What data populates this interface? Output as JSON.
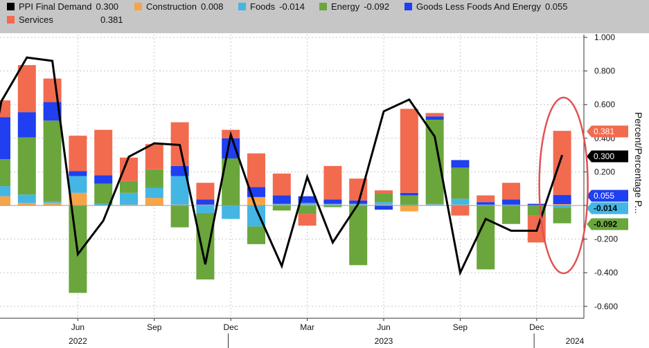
{
  "colors": {
    "ppi": "#000000",
    "construction": "#f7a448",
    "foods": "#44b6e4",
    "energy": "#6aa63c",
    "goods": "#1f3ff0",
    "services": "#f26b4f",
    "ellipse": "#e05252",
    "legend_bg": "#c6c6c6"
  },
  "chart_data": {
    "type": "bar",
    "stacked": true,
    "ylim": [
      -0.65,
      1.0
    ],
    "yticks": [
      -0.6,
      -0.4,
      -0.2,
      0.0,
      0.2,
      0.4,
      0.6,
      0.8,
      1.0
    ],
    "ytick_labels": [
      "-0.600",
      "-0.400",
      "-0.200",
      "",
      "0.200",
      "0.400",
      "0.600",
      "0.800",
      "1.000"
    ],
    "ylabel": "Percent/Percentage P...",
    "months": [
      "Mar 2022",
      "Apr 2022",
      "May 2022",
      "Jun 2022",
      "Jul 2022",
      "Aug 2022",
      "Sep 2022",
      "Oct 2022",
      "Nov 2022",
      "Dec 2022",
      "Jan 2023",
      "Feb 2023",
      "Mar 2023",
      "Apr 2023",
      "May 2023",
      "Jun 2023",
      "Jul 2023",
      "Aug 2023",
      "Sep 2023",
      "Oct 2023",
      "Nov 2023",
      "Dec 2023",
      "Jan 2024"
    ],
    "x_ticks": [
      {
        "index": 3,
        "label": "Jun"
      },
      {
        "index": 6,
        "label": "Sep"
      },
      {
        "index": 9,
        "label": "Dec"
      },
      {
        "index": 12,
        "label": "Mar"
      },
      {
        "index": 15,
        "label": "Jun"
      },
      {
        "index": 18,
        "label": "Sep"
      },
      {
        "index": 21,
        "label": "Dec"
      }
    ],
    "years": [
      {
        "label": "2022",
        "center_index": 3.0
      },
      {
        "label": "2023",
        "center_index": 15.0
      },
      {
        "label": "2024",
        "center_index": 22.5
      }
    ],
    "year_dividers": [
      8.9,
      20.9
    ],
    "series": [
      {
        "key": "construction",
        "name": "Construction",
        "values": [
          0.055,
          0.015,
          0.015,
          0.075,
          0.0,
          0.005,
          0.045,
          0.005,
          0.005,
          0.0,
          0.05,
          0.005,
          0.005,
          0.005,
          0.005,
          0.005,
          -0.035,
          0.005,
          0.005,
          0.0,
          0.0,
          0.0,
          0.008
        ]
      },
      {
        "key": "foods",
        "name": "Foods",
        "values": [
          0.06,
          0.05,
          0.01,
          0.1,
          0.01,
          0.07,
          0.06,
          0.17,
          -0.045,
          -0.08,
          -0.125,
          0.005,
          0.01,
          0.005,
          0.005,
          0.015,
          0.005,
          0.005,
          0.035,
          0.005,
          0.005,
          0.0,
          -0.014
        ]
      },
      {
        "key": "energy",
        "name": "Energy",
        "values": [
          0.16,
          0.34,
          0.48,
          -0.52,
          0.12,
          0.07,
          0.11,
          -0.13,
          -0.395,
          0.28,
          -0.105,
          -0.03,
          -0.05,
          -0.01,
          -0.355,
          0.05,
          0.055,
          0.5,
          0.185,
          -0.38,
          -0.11,
          -0.06,
          -0.092
        ]
      },
      {
        "key": "goods",
        "name": "Goods Less Foods And Energy",
        "values": [
          0.25,
          0.15,
          0.11,
          0.03,
          0.05,
          0.0,
          0.0,
          0.06,
          0.03,
          0.12,
          0.06,
          0.05,
          0.04,
          0.025,
          0.02,
          -0.025,
          0.015,
          0.02,
          0.045,
          0.015,
          0.03,
          0.01,
          0.055
        ]
      },
      {
        "key": "services",
        "name": "Services",
        "values": [
          0.1,
          0.28,
          0.14,
          0.21,
          0.27,
          0.14,
          0.15,
          0.26,
          0.1,
          0.05,
          0.2,
          0.13,
          -0.07,
          0.2,
          0.13,
          0.02,
          0.5,
          0.02,
          -0.06,
          0.04,
          0.1,
          -0.16,
          0.381
        ]
      }
    ],
    "line": {
      "key": "ppi",
      "name": "PPI Final Demand",
      "values": [
        0.62,
        0.88,
        0.86,
        -0.29,
        -0.09,
        0.29,
        0.37,
        0.36,
        -0.35,
        0.42,
        -0.02,
        -0.36,
        0.17,
        -0.22,
        0.01,
        0.56,
        0.63,
        0.41,
        -0.4,
        -0.08,
        -0.15,
        -0.15,
        0.3
      ]
    },
    "legend": [
      {
        "key": "ppi",
        "label": "PPI Final Demand",
        "value": "0.300"
      },
      {
        "key": "construction",
        "label": "Construction",
        "value": "0.008"
      },
      {
        "key": "foods",
        "label": "Foods",
        "value": "-0.014"
      },
      {
        "key": "energy",
        "label": "Energy",
        "value": "-0.092"
      },
      {
        "key": "goods",
        "label": "Goods Less Foods And Energy",
        "value": "0.055"
      },
      {
        "key": "services",
        "label": "Services",
        "value": "0.381"
      }
    ],
    "last_value_badges": [
      {
        "key": "services",
        "label": "0.381",
        "value": 0.381
      },
      {
        "key": "ppi",
        "label": "0.300",
        "value": 0.3
      },
      {
        "key": "goods",
        "label": "0.055",
        "value": 0.055
      },
      {
        "key": "foods",
        "label": "-0.014",
        "value": -0.014
      },
      {
        "key": "energy",
        "label": "-0.092",
        "value": -0.092
      }
    ],
    "highlight": {
      "shape": "ellipse",
      "around_index": 22
    }
  }
}
